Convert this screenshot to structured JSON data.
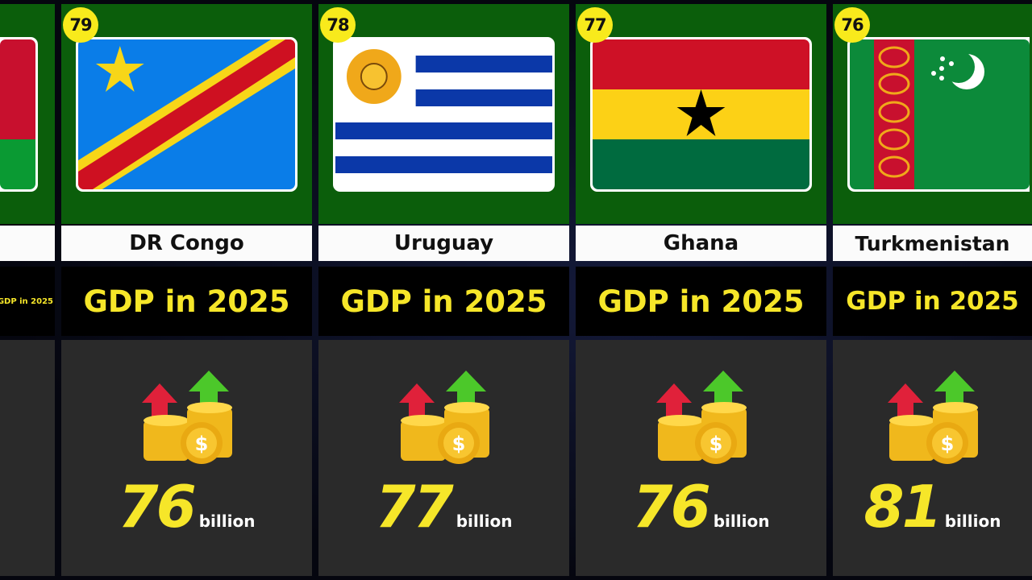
{
  "title_text": "GDP in 2025",
  "unit": "billion",
  "countries": [
    {
      "rank": "",
      "name": "",
      "value": "",
      "flag": "belarus-partial"
    },
    {
      "rank": "79",
      "name": "DR Congo",
      "value": "76",
      "flag": "dr-congo"
    },
    {
      "rank": "78",
      "name": "Uruguay",
      "value": "77",
      "flag": "uruguay"
    },
    {
      "rank": "77",
      "name": "Ghana",
      "value": "76",
      "flag": "ghana"
    },
    {
      "rank": "76",
      "name": "Turkmenistan",
      "value": "81",
      "flag": "turkmenistan"
    }
  ],
  "colors": {
    "accent_yellow": "#f6e629",
    "panel_green": "#0b5e0b",
    "panel_dark": "#2a2a2a"
  }
}
